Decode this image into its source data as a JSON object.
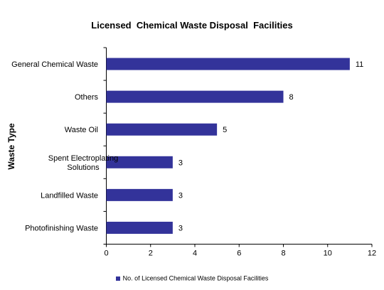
{
  "chart_data": {
    "type": "bar",
    "orientation": "horizontal",
    "title": "Licensed  Chemical Waste Disposal  Facilities",
    "ylabel": "Waste Type",
    "xlabel": "",
    "categories": [
      [
        "General Chemical Waste"
      ],
      [
        "Others"
      ],
      [
        "Waste Oil"
      ],
      [
        "Spent Electroplating",
        "Solutions"
      ],
      [
        "Landfilled Waste"
      ],
      [
        "Photofinishing Waste"
      ]
    ],
    "series": [
      {
        "name": "No. of Licensed Chemical Waste Disposal Facilities",
        "values": [
          11,
          8,
          5,
          3,
          3,
          3
        ]
      }
    ],
    "xlim": [
      0,
      12
    ],
    "xticks": [
      0,
      2,
      4,
      6,
      8,
      10,
      12
    ],
    "data_labels": true,
    "grid": false,
    "legend_position": "bottom",
    "colors": {
      "bar": "#33339a"
    }
  }
}
